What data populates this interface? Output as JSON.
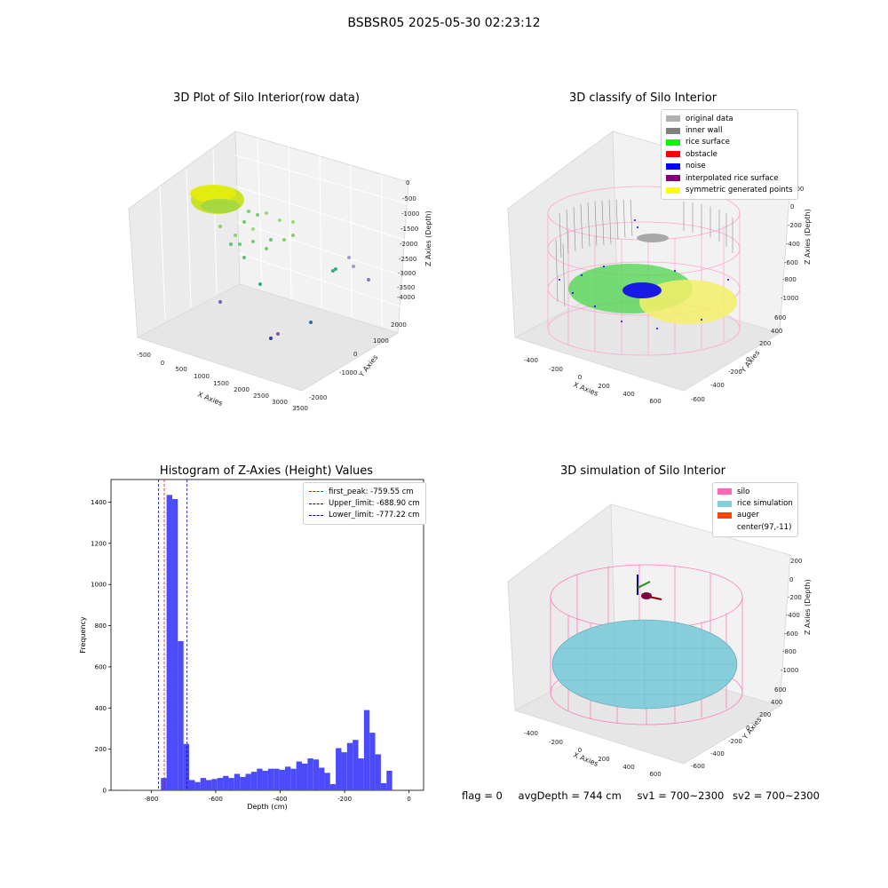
{
  "suptitle": "BSBSR05 2025-05-30 02:23:12",
  "colors": {
    "histogram_bar": "#4b4bfb",
    "first_peak": "#ff0000",
    "limit_lines": "#0000aa",
    "silo_wire": "#ff69b4",
    "rice": "#87cedb"
  },
  "panel_raw": {
    "title": "3D Plot of Silo Interior(row data)",
    "xlabel": "X Axies",
    "ylabel": "Y Axies",
    "zlabel": "Z Axies (Depth)",
    "x_ticks": [
      "-500",
      "0",
      "500",
      "1000",
      "1500",
      "2000",
      "2500",
      "3000",
      "3500"
    ],
    "y_ticks": [
      "-2000",
      "-1000",
      "0",
      "1000",
      "2000"
    ],
    "z_ticks": [
      "0",
      "-500",
      "-1000",
      "-1500",
      "-2000",
      "-2500",
      "-3000",
      "-3500",
      "-4000"
    ]
  },
  "panel_classify": {
    "title": "3D classify of Silo Interior",
    "xlabel": "X Axies",
    "ylabel": "Y Axies",
    "zlabel": "Z Axies (Depth)",
    "x_ticks": [
      "-400",
      "-200",
      "0",
      "200",
      "400",
      "600"
    ],
    "y_ticks": [
      "-600",
      "-400",
      "-200",
      "0",
      "200",
      "400",
      "600"
    ],
    "z_ticks": [
      "200",
      "0",
      "-200",
      "-400",
      "-600",
      "-800",
      "-1000"
    ],
    "legend": [
      {
        "label": "original data",
        "color": "#b0b0b0"
      },
      {
        "label": "inner wall",
        "color": "#808080"
      },
      {
        "label": "rice surface",
        "color": "#00ff00"
      },
      {
        "label": "obstacle",
        "color": "#ff0000"
      },
      {
        "label": "noise",
        "color": "#0000ff"
      },
      {
        "label": "interpolated rice surface",
        "color": "#800080"
      },
      {
        "label": "symmetric generated points",
        "color": "#ffff00"
      }
    ]
  },
  "panel_hist": {
    "title": "Histogram of Z-Axies (Height) Values",
    "legend": [
      {
        "label": "first_peak: -759.55 cm",
        "color": "#ff0000"
      },
      {
        "label": "Upper_limit: -688.90 cm",
        "color": "#0000aa"
      },
      {
        "label": "Lower_limit: -777.22 cm",
        "color": "#0000aa"
      }
    ]
  },
  "panel_sim": {
    "title": "3D simulation of Silo Interior",
    "xlabel": "X Axies",
    "ylabel": "Y Axies",
    "zlabel": "Z Axies (Depth)",
    "x_ticks": [
      "-400",
      "-200",
      "0",
      "200",
      "400",
      "600"
    ],
    "y_ticks": [
      "-600",
      "-400",
      "-200",
      "0",
      "200",
      "400",
      "600"
    ],
    "z_ticks": [
      "200",
      "0",
      "-200",
      "-400",
      "-600",
      "-800",
      "-1000"
    ],
    "legend": [
      {
        "label": "silo",
        "color": "#ff69b4"
      },
      {
        "label": "rice simulation",
        "color": "#87cedb"
      },
      {
        "label": "auger",
        "color": "#ff4500"
      },
      {
        "label": "center(97,-11)",
        "color": "#ffffff"
      }
    ]
  },
  "footer": {
    "flag": "flag = 0",
    "avg": "avgDepth = 744 cm",
    "sv1": "sv1 = 700~2300",
    "sv2": "sv2 = 700~2300"
  },
  "chart_data": {
    "type": "bar",
    "title": "Histogram of Z-Axies (Height) Values",
    "xlabel": "Depth (cm)",
    "ylabel": "Frequency",
    "xlim": [
      -925,
      45
    ],
    "ylim": [
      0,
      1510
    ],
    "x_ticks": [
      -800,
      -600,
      -400,
      -200,
      0
    ],
    "y_ticks": [
      0,
      200,
      400,
      600,
      800,
      1000,
      1200,
      1400
    ],
    "bin_width": 17.5,
    "bin_start": -875,
    "values": [
      1,
      1,
      1,
      1,
      1,
      1,
      60,
      1435,
      1415,
      725,
      225,
      50,
      40,
      60,
      50,
      55,
      60,
      70,
      60,
      80,
      65,
      80,
      90,
      105,
      95,
      105,
      105,
      100,
      115,
      105,
      140,
      130,
      155,
      150,
      110,
      85,
      30,
      205,
      185,
      230,
      245,
      155,
      390,
      280,
      175,
      35,
      95
    ],
    "lines": [
      {
        "name": "first_peak: -759.55 cm",
        "x": -759.55,
        "color": "#ff0000"
      },
      {
        "name": "Upper_limit: -688.90 cm",
        "x": -688.9,
        "color": "#0000aa"
      },
      {
        "name": "Lower_limit: -777.22 cm",
        "x": -777.22,
        "color": "#0000aa"
      }
    ],
    "legend_position": "top-right",
    "grid": false
  }
}
